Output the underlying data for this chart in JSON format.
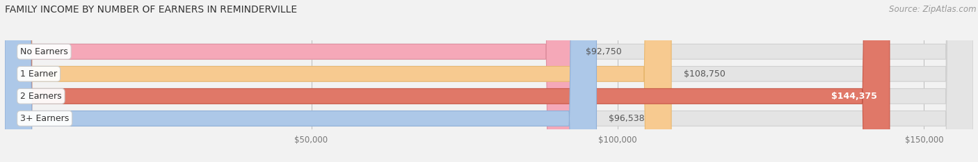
{
  "title": "FAMILY INCOME BY NUMBER OF EARNERS IN REMINDERVILLE",
  "source": "Source: ZipAtlas.com",
  "categories": [
    "No Earners",
    "1 Earner",
    "2 Earners",
    "3+ Earners"
  ],
  "values": [
    92750,
    108750,
    144375,
    96538
  ],
  "bar_colors": [
    "#f5a8b8",
    "#f7ca90",
    "#e07868",
    "#adc8e8"
  ],
  "bar_edge_colors": [
    "#e090a0",
    "#e8b870",
    "#c85848",
    "#90b0d8"
  ],
  "value_labels": [
    "$92,750",
    "$108,750",
    "$144,375",
    "$96,538"
  ],
  "value_inside": [
    false,
    false,
    true,
    false
  ],
  "bg_color": "#f2f2f2",
  "bar_bg_color": "#e4e4e4",
  "bar_bg_edge_color": "#d0d0d0",
  "xlim": [
    0,
    158000
  ],
  "x_ticks": [
    50000,
    100000,
    150000
  ],
  "x_tick_labels": [
    "$50,000",
    "$100,000",
    "$150,000"
  ],
  "title_fontsize": 10,
  "source_fontsize": 8.5,
  "label_fontsize": 9,
  "value_fontsize": 9,
  "tick_fontsize": 8.5,
  "bar_height": 0.68,
  "bar_gap": 0.08,
  "figsize": [
    14.06,
    2.33
  ],
  "dpi": 100
}
